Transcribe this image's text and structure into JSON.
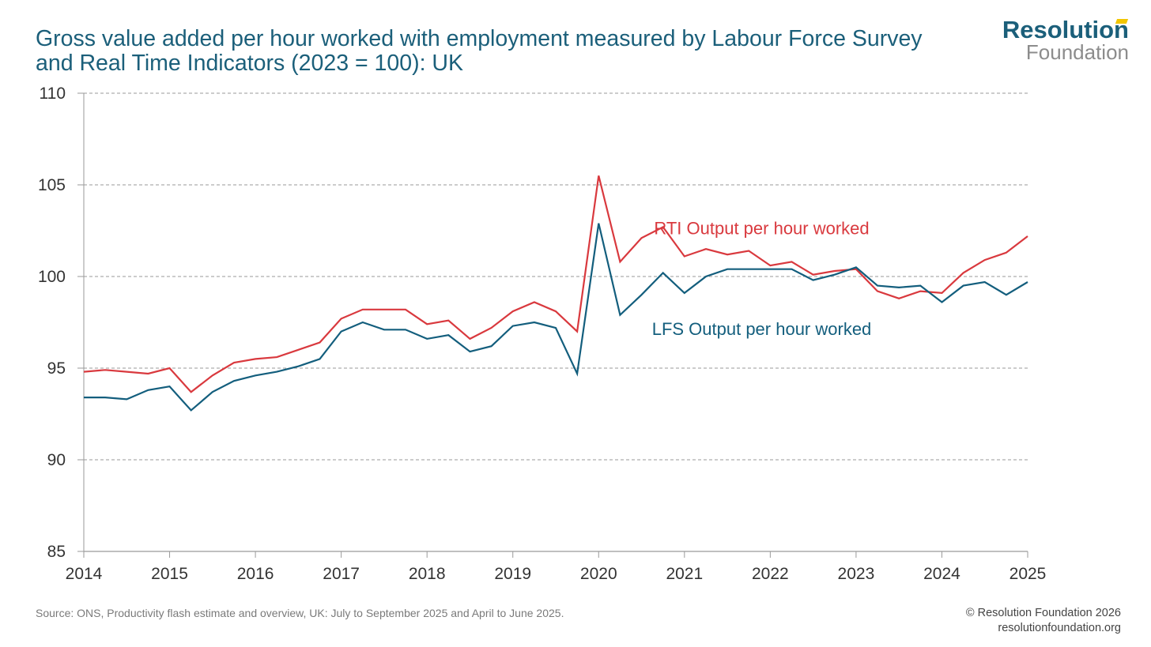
{
  "title_lines": [
    "Gross value added per hour worked with employment measured by Labour Force Survey",
    "and Real Time Indicators (2023 = 100): UK"
  ],
  "logo": {
    "line1": "Resolution",
    "line2": "Foundation"
  },
  "footer": {
    "source": "Source: ONS, Productivity flash estimate and overview, UK: July to September 2025 and April to June 2025.",
    "copyright": "© Resolution Foundation 2026",
    "website": "resolutionfoundation.org"
  },
  "colors": {
    "rti": "#d9393e",
    "lfs": "#135e7d",
    "title": "#1b5f7a",
    "grid": "#9a9a9a",
    "axis": "#9a9a9a"
  },
  "chart_data": {
    "type": "line",
    "xlim": [
      2014,
      2025
    ],
    "ylim": [
      85,
      110
    ],
    "yticks": [
      85,
      90,
      95,
      100,
      105,
      110
    ],
    "xticks": [
      2014,
      2015,
      2016,
      2017,
      2018,
      2019,
      2020,
      2021,
      2022,
      2023,
      2024,
      2025
    ],
    "grid": true,
    "series": [
      {
        "name": "RTI Output per hour worked",
        "color": "#d9393e",
        "label_at": [
          2021.9,
          102.3
        ],
        "x": [
          2014,
          2014.25,
          2014.5,
          2014.75,
          2015,
          2015.25,
          2015.5,
          2015.75,
          2016,
          2016.25,
          2016.5,
          2016.75,
          2017,
          2017.25,
          2017.5,
          2017.75,
          2018,
          2018.25,
          2018.5,
          2018.75,
          2019,
          2019.25,
          2019.5,
          2019.75,
          2020,
          2020.25,
          2020.5,
          2020.75,
          2021,
          2021.25,
          2021.5,
          2021.75,
          2022,
          2022.25,
          2022.5,
          2022.75,
          2023,
          2023.25,
          2023.5,
          2023.75,
          2024,
          2024.25,
          2024.5,
          2024.75,
          2025
        ],
        "y": [
          94.8,
          94.9,
          94.8,
          94.7,
          95.0,
          93.7,
          94.6,
          95.3,
          95.5,
          95.6,
          96.0,
          96.4,
          97.7,
          98.2,
          98.2,
          98.2,
          97.4,
          97.6,
          96.6,
          97.2,
          98.1,
          98.6,
          98.1,
          97.0,
          105.5,
          100.8,
          102.1,
          102.7,
          101.1,
          101.5,
          101.2,
          101.4,
          100.6,
          100.8,
          100.1,
          100.3,
          100.4,
          99.2,
          98.8,
          99.2,
          99.1,
          100.2,
          100.9,
          101.3,
          102.2
        ]
      },
      {
        "name": "LFS Output per hour worked",
        "color": "#135e7d",
        "label_at": [
          2021.9,
          96.8
        ],
        "x": [
          2014,
          2014.25,
          2014.5,
          2014.75,
          2015,
          2015.25,
          2015.5,
          2015.75,
          2016,
          2016.25,
          2016.5,
          2016.75,
          2017,
          2017.25,
          2017.5,
          2017.75,
          2018,
          2018.25,
          2018.5,
          2018.75,
          2019,
          2019.25,
          2019.5,
          2019.75,
          2020,
          2020.25,
          2020.5,
          2020.75,
          2021,
          2021.25,
          2021.5,
          2021.75,
          2022,
          2022.25,
          2022.5,
          2022.75,
          2023,
          2023.25,
          2023.5,
          2023.75,
          2024,
          2024.25,
          2024.5,
          2024.75,
          2025
        ],
        "y": [
          93.4,
          93.4,
          93.3,
          93.8,
          94.0,
          92.7,
          93.7,
          94.3,
          94.6,
          94.8,
          95.1,
          95.5,
          97.0,
          97.5,
          97.1,
          97.1,
          96.6,
          96.8,
          95.9,
          96.2,
          97.3,
          97.5,
          97.2,
          94.7,
          102.9,
          97.9,
          99.0,
          100.2,
          99.1,
          100.0,
          100.4,
          100.4,
          100.4,
          100.4,
          99.8,
          100.1,
          100.5,
          99.5,
          99.4,
          99.5,
          98.6,
          99.5,
          99.7,
          99.0,
          99.7
        ]
      }
    ]
  }
}
